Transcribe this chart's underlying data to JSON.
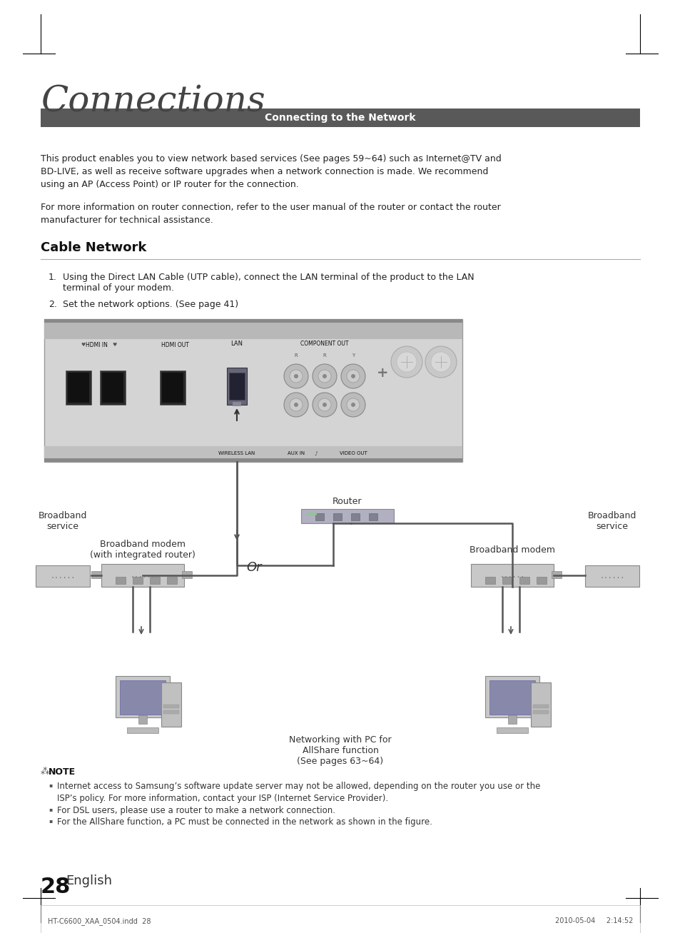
{
  "bg_color": "#ffffff",
  "title": "Connections",
  "section_header": "Connecting to the Network",
  "section_header_bg": "#595959",
  "section_header_color": "#ffffff",
  "body_text_1": "This product enables you to view network based services (See pages 59~64) such as Internet@TV and\nBD-LIVE, as well as receive software upgrades when a network connection is made. We recommend\nusing an AP (Access Point) or IP router for the connection.",
  "body_text_2": "For more information on router connection, refer to the user manual of the router or contact the router\nmanufacturer for technical assistance.",
  "cable_network_title": "Cable Network",
  "step1": "Using the Direct LAN Cable (UTP cable), connect the LAN terminal of the product to the LAN\n    terminal of your modem.",
  "step2": "Set the network options. (See page 41)",
  "note_title": "NOTE",
  "note_bullet1": "Internet access to Samsung’s software update server may not be allowed, depending on the router you use or the\nISP’s policy. For more information, contact your ISP (Internet Service Provider).",
  "note_bullet2": "For DSL users, please use a router to make a network connection.",
  "note_bullet3": "For the AllShare function, a PC must be connected in the network as shown in the figure.",
  "diagram_label_router": "Router",
  "diagram_label_broadband_modem_left": "Broadband modem\n(with integrated router)",
  "diagram_label_or": "Or",
  "diagram_label_broadband_modem_right": "Broadband modem",
  "diagram_label_broadband_service_left": "Broadband\nservice",
  "diagram_label_broadband_service_right": "Broadband\nservice",
  "diagram_label_networking": "Networking with PC for\nAllShare function\n(See pages 63~64)",
  "diagram_label_lan": "LAN",
  "diagram_label_component_out": "COMPONENT OUT",
  "diagram_label_wireless_lan": "WIRELESS LAN",
  "diagram_label_aux_in": "AUX IN",
  "diagram_label_video_out": "VIDEO OUT",
  "diagram_label_hdmi_in": "HDMI IN",
  "diagram_label_hdmi_out": "HDMI OUT",
  "page_number": "28",
  "page_english": "English",
  "footer_left": "HT-C6600_XAA_0504.indd  28",
  "footer_right": "2010-05-04     2:14:52"
}
